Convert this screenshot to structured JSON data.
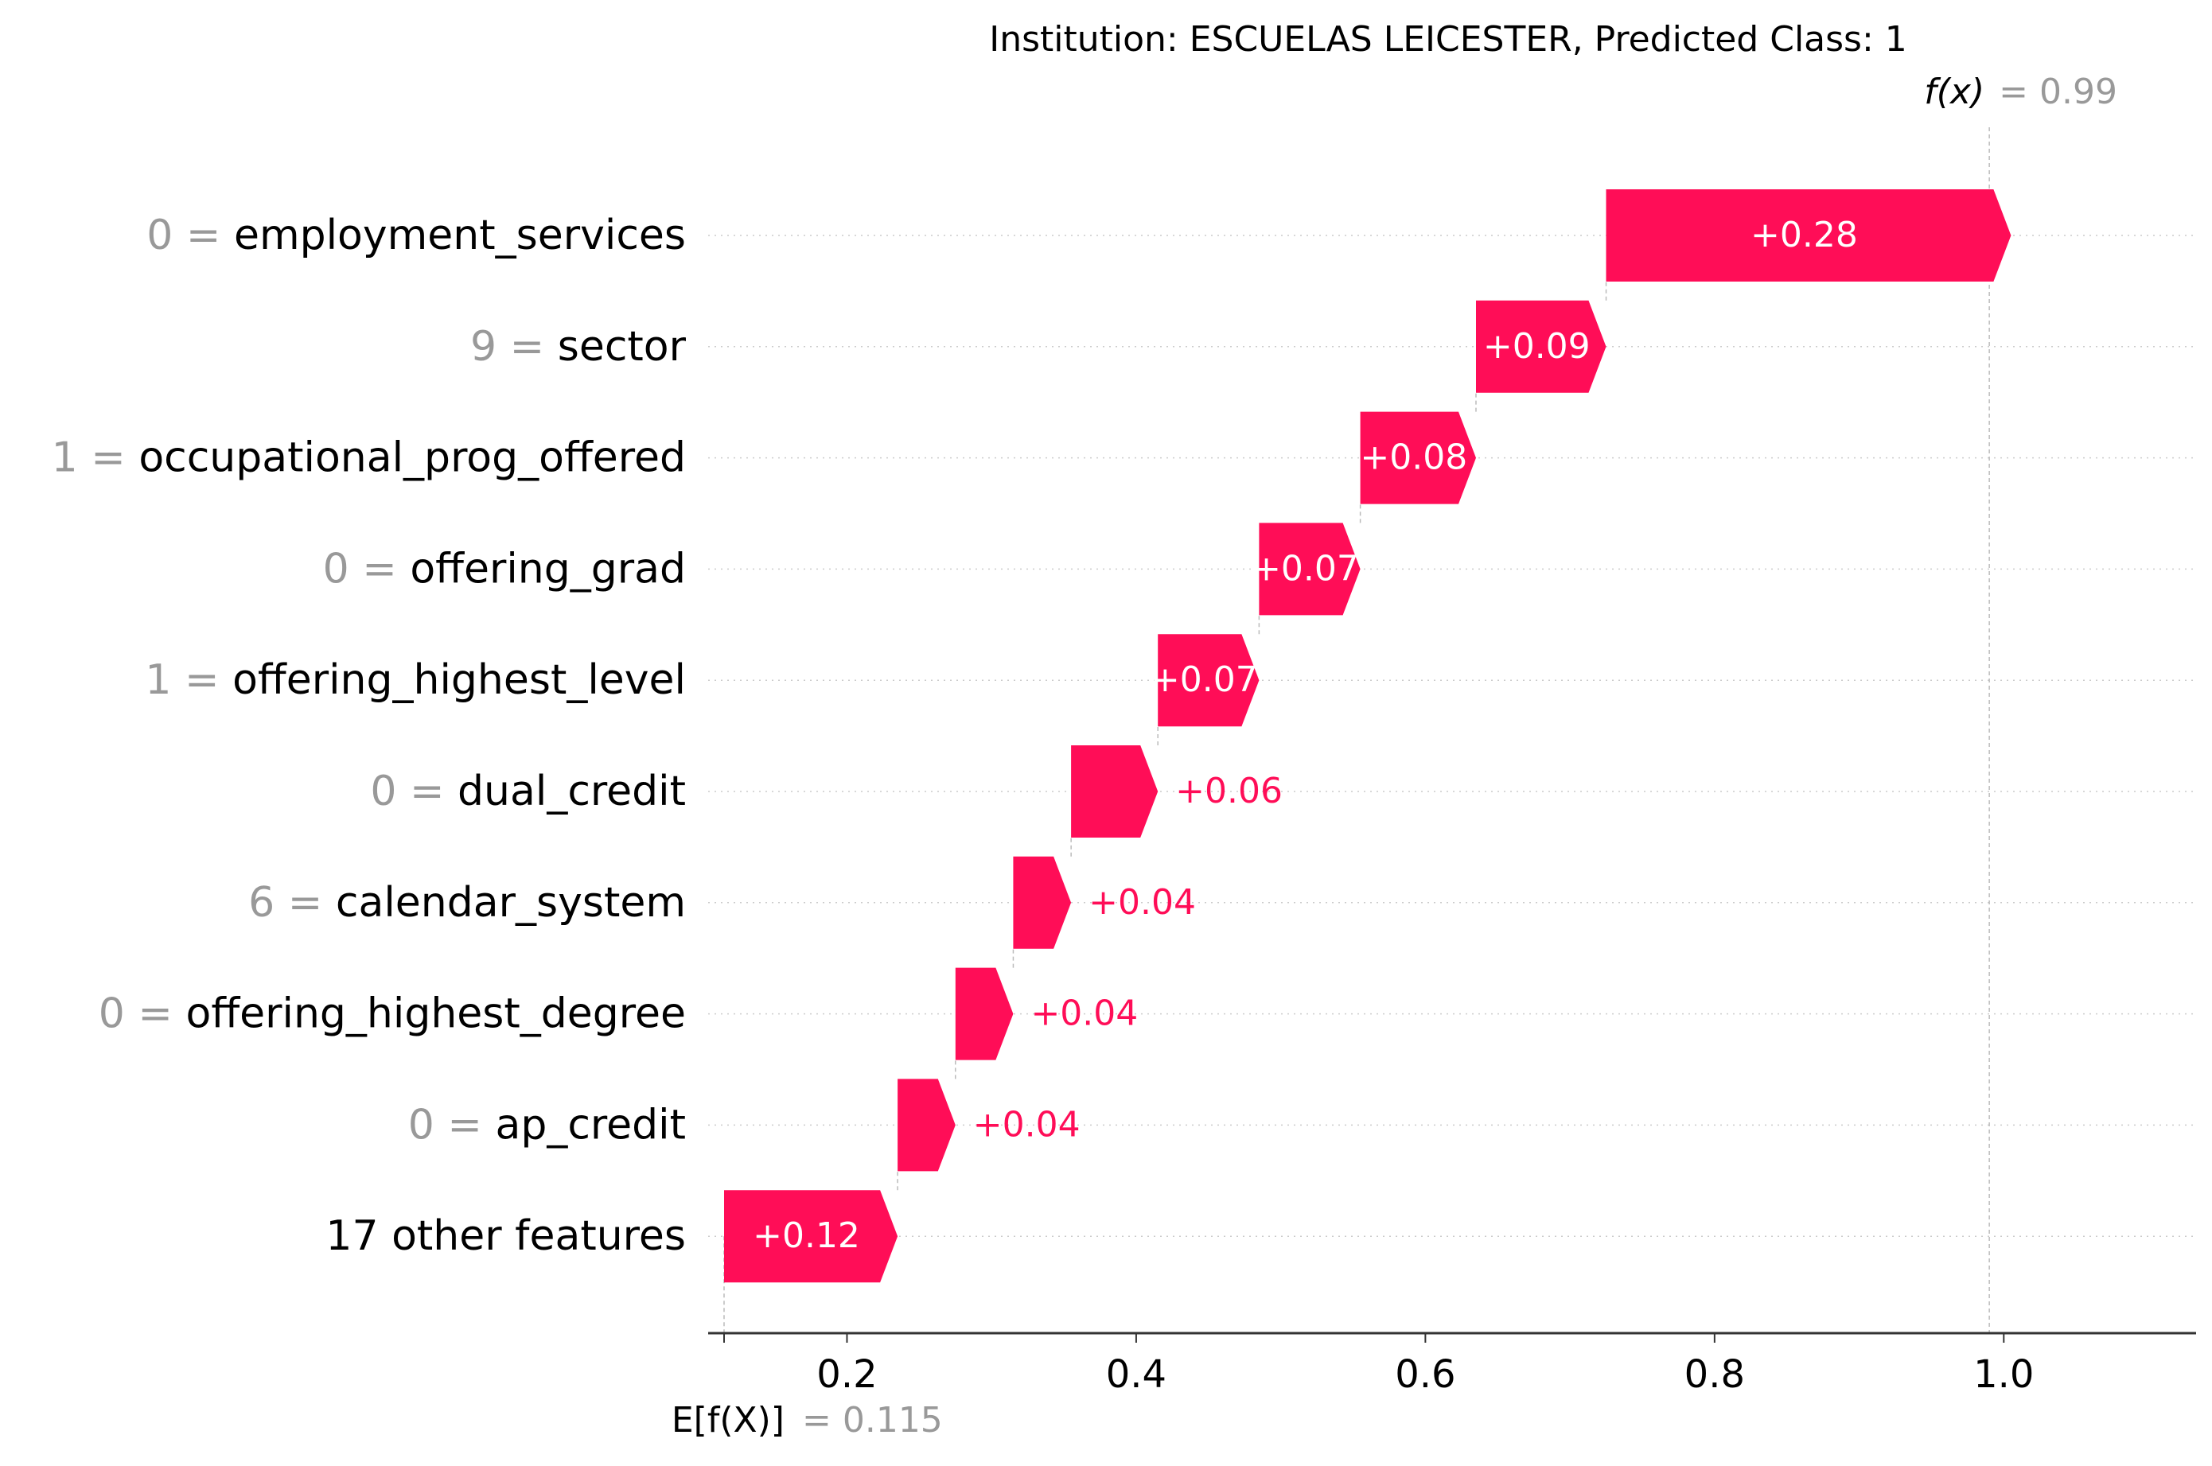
{
  "chart_data": {
    "type": "waterfall",
    "title": "Institution: ESCUELAS LEICESTER, Predicted Class: 1",
    "base_value": 0.115,
    "base_label": "E[f(X)]",
    "base_value_text": "= 0.115",
    "output_value": 0.99,
    "output_label": "f(x)",
    "output_value_text": "= 0.99",
    "x_ticks": [
      0.2,
      0.4,
      0.6,
      0.8,
      1.0
    ],
    "x_tick_labels": [
      "0.2",
      "0.4",
      "0.6",
      "0.8",
      "1.0"
    ],
    "xlim": [
      0.104,
      1.133
    ],
    "features": [
      {
        "value_text": "0 =",
        "name": "employment_services",
        "contribution": 0.28,
        "label": "+0.28"
      },
      {
        "value_text": "9 =",
        "name": "sector",
        "contribution": 0.09,
        "label": "+0.09"
      },
      {
        "value_text": "1 =",
        "name": "occupational_prog_offered",
        "contribution": 0.08,
        "label": "+0.08"
      },
      {
        "value_text": "0 =",
        "name": "offering_grad",
        "contribution": 0.07,
        "label": "+0.07"
      },
      {
        "value_text": "1 =",
        "name": "offering_highest_level",
        "contribution": 0.07,
        "label": "+0.07"
      },
      {
        "value_text": "0 =",
        "name": "dual_credit",
        "contribution": 0.06,
        "label": "+0.06"
      },
      {
        "value_text": "6 =",
        "name": "calendar_system",
        "contribution": 0.04,
        "label": "+0.04"
      },
      {
        "value_text": "0 =",
        "name": "offering_highest_degree",
        "contribution": 0.04,
        "label": "+0.04"
      },
      {
        "value_text": "0 =",
        "name": "ap_credit",
        "contribution": 0.04,
        "label": "+0.04"
      },
      {
        "value_text": "",
        "name": "17 other features",
        "contribution": 0.12,
        "label": "+0.12"
      }
    ],
    "colors": {
      "positive": "#ff0d57",
      "label_on_bar": "#ffffff",
      "label_outside": "#ff0d57",
      "feature_value": "#999999",
      "feature_name": "#000000",
      "grid": "#cccccc",
      "connector": "#bbbbbb",
      "axis": "#333333"
    },
    "grid": true
  }
}
